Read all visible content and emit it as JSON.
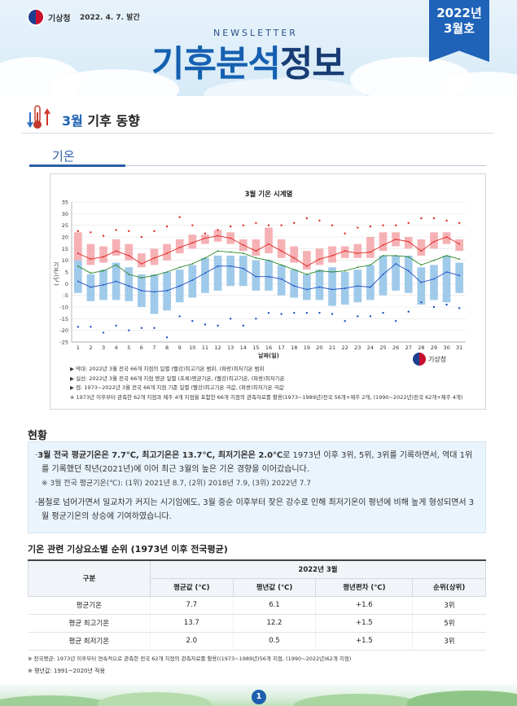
{
  "header": {
    "agency": "기상청",
    "pub_date": "2022. 4. 7. 발간",
    "newsletter": "NEWSLETTER",
    "title_part1": "기후분석",
    "title_part2": "정보",
    "badge_year": "2022년",
    "badge_month": "3월호"
  },
  "section": {
    "title_hl": "3월",
    "title_rest": " 기후 동향",
    "sub_tab": "기온"
  },
  "chart_data": {
    "type": "line",
    "title": "3월 기온 시계열",
    "xlabel": "날짜(일)",
    "ylabel": "기온 (℃)",
    "ylim": [
      -25,
      35
    ],
    "yticks": [
      35,
      30,
      25,
      20,
      15,
      10,
      5,
      0,
      -5,
      -10,
      -15,
      -20,
      -25
    ],
    "x": [
      1,
      2,
      3,
      4,
      5,
      6,
      7,
      8,
      9,
      10,
      11,
      12,
      13,
      14,
      15,
      16,
      17,
      18,
      19,
      20,
      21,
      22,
      23,
      24,
      25,
      26,
      27,
      28,
      29,
      30,
      31
    ],
    "series": [
      {
        "name": "평균기온",
        "color": "#2a8a2a",
        "values": [
          7.5,
          4.5,
          5.5,
          8,
          4,
          2.5,
          3.5,
          5,
          7,
          8.5,
          11,
          14,
          13.5,
          13,
          11,
          10,
          8,
          6,
          4,
          5.5,
          5,
          5.5,
          7,
          8,
          12,
          12,
          11.5,
          8,
          10,
          12,
          10.5
        ]
      },
      {
        "name": "최고기온",
        "color": "#e0251f",
        "values": [
          13,
          10.5,
          11.5,
          14,
          12,
          8.5,
          11,
          13,
          15.5,
          17.5,
          19.5,
          20.5,
          19.5,
          16.5,
          14,
          17,
          14,
          11,
          7.5,
          10.5,
          12,
          14,
          13,
          13.5,
          16.5,
          19,
          18,
          14,
          18,
          20,
          17
        ]
      },
      {
        "name": "최저기온",
        "color": "#1d4fc4",
        "values": [
          1,
          -1.5,
          -0.5,
          1,
          -1,
          -3,
          -3.5,
          -3,
          -1,
          1.5,
          4.5,
          7.5,
          7.5,
          6.5,
          3,
          3,
          2,
          -1,
          -2.5,
          -1.5,
          -2.5,
          -2,
          -1,
          -1.5,
          4,
          8.5,
          5.5,
          0.5,
          2,
          5,
          3.5
        ]
      },
      {
        "name": "최고기온 극값",
        "color": "#e0251f",
        "values": [
          22.5,
          22,
          20.5,
          23,
          22.5,
          20,
          22.5,
          24.5,
          28.5,
          25,
          21.5,
          23,
          24.5,
          25,
          26,
          25,
          25,
          26,
          28,
          27,
          25,
          21.5,
          24,
          24.5,
          25,
          25,
          26,
          28,
          28,
          27,
          26
        ]
      },
      {
        "name": "최저기온 극값",
        "color": "#1d4fc4",
        "values": [
          -18.5,
          -18.5,
          -21,
          -18,
          -20,
          -19,
          -19,
          -23,
          -14,
          -16,
          -17.5,
          -18,
          -15,
          -18,
          -15,
          -12.5,
          -13,
          -12.5,
          -12.5,
          -12.5,
          -13,
          -16,
          -14,
          -14,
          -12.5,
          -16,
          -12,
          -8,
          -10,
          -9,
          -10.5
        ]
      }
    ],
    "ranges": [
      {
        "name": "최고기온 범위",
        "color": "#f4a3a8",
        "low": [
          10,
          8,
          9,
          12,
          10,
          7,
          8,
          10,
          13,
          15,
          17,
          18,
          17,
          14,
          12,
          13,
          11,
          9,
          6,
          8,
          9,
          11,
          11,
          11,
          14,
          16,
          15,
          12,
          15,
          17,
          14
        ],
        "high": [
          22,
          17,
          16,
          19,
          17,
          13,
          15,
          17,
          19,
          21,
          21,
          23,
          22,
          19,
          19,
          24,
          19,
          16,
          14,
          15,
          16,
          16,
          17,
          20,
          22,
          22,
          20,
          19,
          22,
          22,
          19
        ]
      },
      {
        "name": "최저기온 범위",
        "color": "#8fc1e6",
        "low": [
          -4,
          -7.5,
          -7,
          -7,
          -7.5,
          -10,
          -13,
          -11.5,
          -8,
          -6,
          -4,
          -3,
          -1,
          -1,
          -3,
          -3,
          -5,
          -6,
          -7,
          -7,
          -9.5,
          -9,
          -8,
          -7,
          -5,
          -3,
          -4,
          -9,
          -7,
          -8,
          -4
        ],
        "high": [
          10,
          4,
          6,
          9,
          7,
          4,
          4,
          5,
          6,
          8,
          11,
          12,
          12,
          12,
          10,
          10,
          8,
          6,
          4,
          6,
          7,
          5,
          6,
          8,
          12,
          12,
          12,
          7,
          8,
          12,
          9
        ]
      }
    ],
    "legend_notes": [
      "▶ 막대: 2022년 3월 전국 66개 지점의 일별 (빨강)최고기온 범위, (파랑)최저기온 범위",
      "▶ 실선: 2022년 3월 전국 66개 지점 평균 일별 (초록)평균기온, (빨강)최고기온, (파랑)최저기온",
      "▶ 점: 1973~2022년 3월 전국 66개 지점 기준 일별 (빨강)최고기온 극값, (파랑)최저기온 극값",
      "※ 1973년 이후부터 관측한 62개 지점과 제주 4개 지점을 포함한 66개 지점의 관측자료를 활용(1973~1989년)전국 56개+제주 2개, (1990~2022년)전국 62개+제주 4개)"
    ]
  },
  "kma_small": "기상청",
  "status": {
    "heading": "현황",
    "p1_bold": "3월 전국 평균기온은 7.7℃, 최고기온은 13.7℃, 최저기온은 2.0℃",
    "p1_rest": "로 1973년 이후 3위, 5위, 3위를 기록하면서, 역대 1위를 기록했던 작년(2021년)에 이어 최근 3월의 높은 기온 경향을 이어갔습니다.",
    "p1_sub": "※ 3월 전국 평균기온(℃): (1위) 2021년 8.7, (2위) 2018년 7.9, (3위) 2022년 7.7",
    "p2": "봄철로 넘어가면서 일교차가 커지는 시기임에도, 3월 중순 이후부터 잦은 강수로 인해 최저기온이 평년에 비해 높게 형성되면서 3월 평균기온의 상승에 기여하였습니다."
  },
  "table": {
    "heading": "기온 관련 기상요소별 순위 (1973년 이후 전국평균)",
    "group_header": "2022년 3월",
    "row_header": "구분",
    "columns": [
      "평균값 (℃)",
      "평년값 (℃)",
      "평년편차 (℃)",
      "순위(상위)"
    ],
    "rows": [
      {
        "label": "평균기온",
        "cells": [
          "7.7",
          "6.1",
          "+1.6",
          "3위"
        ]
      },
      {
        "label": "평균 최고기온",
        "cells": [
          "13.7",
          "12.2",
          "+1.5",
          "5위"
        ]
      },
      {
        "label": "평균 최저기온",
        "cells": [
          "2.0",
          "0.5",
          "+1.5",
          "3위"
        ]
      }
    ]
  },
  "footnotes": {
    "f1": "※ 전국평균: 1973년 이후부터 연속적으로 관측한 전국 62개 지점의 관측자료를 활용((1973~1989년)56개 지점, (1990~2022년)62개 지점)",
    "f2": "※ 평년값: 1991~2020년 적용"
  },
  "page_number": "1"
}
